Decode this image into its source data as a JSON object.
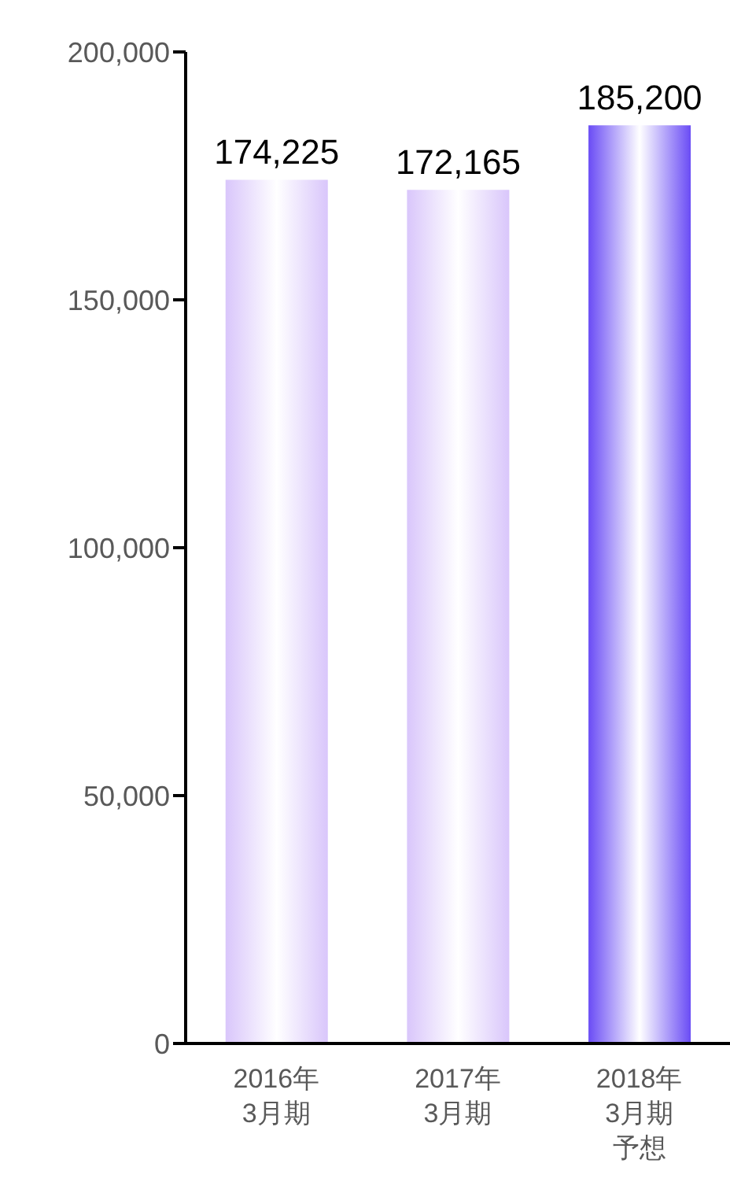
{
  "chart_data": {
    "type": "bar",
    "categories": [
      "2016年3月期",
      "2017年3月期",
      "2018年3月期予想"
    ],
    "values": [
      174225,
      172165,
      185200
    ],
    "value_labels": [
      "174,225",
      "172,165",
      "185,200"
    ],
    "colors": [
      "#d9c6fb",
      "#d9c6fb",
      "#6a4cf5"
    ],
    "ylim": [
      0,
      200000
    ],
    "yticks": [
      {
        "value": 0,
        "label": "0"
      },
      {
        "value": 50000,
        "label": "50,000"
      },
      {
        "value": 100000,
        "label": "100,000"
      },
      {
        "value": 150000,
        "label": "150,000"
      },
      {
        "value": 200000,
        "label": "200,000"
      }
    ],
    "grid": false,
    "legend": false
  }
}
